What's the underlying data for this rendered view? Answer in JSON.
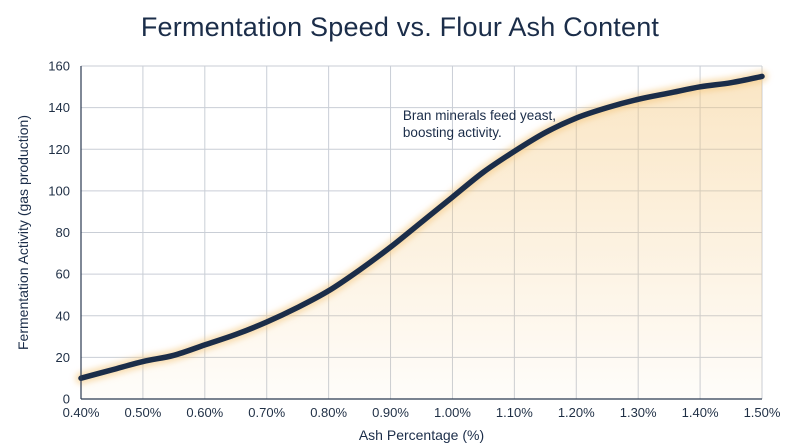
{
  "chart_data": {
    "type": "line",
    "title": "Fermentation Speed vs. Flour Ash Content",
    "xlabel": "Ash Percentage (%)",
    "ylabel": "Fermentation Activity (gas production)",
    "xlim": [
      0.4,
      1.5
    ],
    "ylim": [
      0,
      160
    ],
    "x_ticks": [
      "0.40%",
      "0.50%",
      "0.60%",
      "0.70%",
      "0.80%",
      "0.90%",
      "1.00%",
      "1.10%",
      "1.20%",
      "1.30%",
      "1.40%",
      "1.50%"
    ],
    "y_ticks": [
      "0",
      "20",
      "40",
      "60",
      "80",
      "100",
      "120",
      "140",
      "160"
    ],
    "grid": true,
    "series": [
      {
        "x": [
          0.4,
          0.45,
          0.5,
          0.55,
          0.6,
          0.65,
          0.7,
          0.75,
          0.8,
          0.85,
          0.9,
          0.95,
          1.0,
          1.05,
          1.1,
          1.15,
          1.2,
          1.25,
          1.3,
          1.35,
          1.4,
          1.45,
          1.5
        ],
        "y": [
          10,
          14,
          18,
          21,
          26,
          31,
          37,
          44,
          52,
          62,
          73,
          85,
          97,
          109,
          119,
          128,
          135,
          140,
          144,
          147,
          150,
          152,
          155
        ],
        "color": "#1b2d49",
        "fill_color": "#f4c77d"
      }
    ],
    "annotations": [
      {
        "lines": [
          "Bran minerals feed yeast,",
          "boosting activity."
        ],
        "x": 0.92,
        "y": 134
      }
    ]
  }
}
